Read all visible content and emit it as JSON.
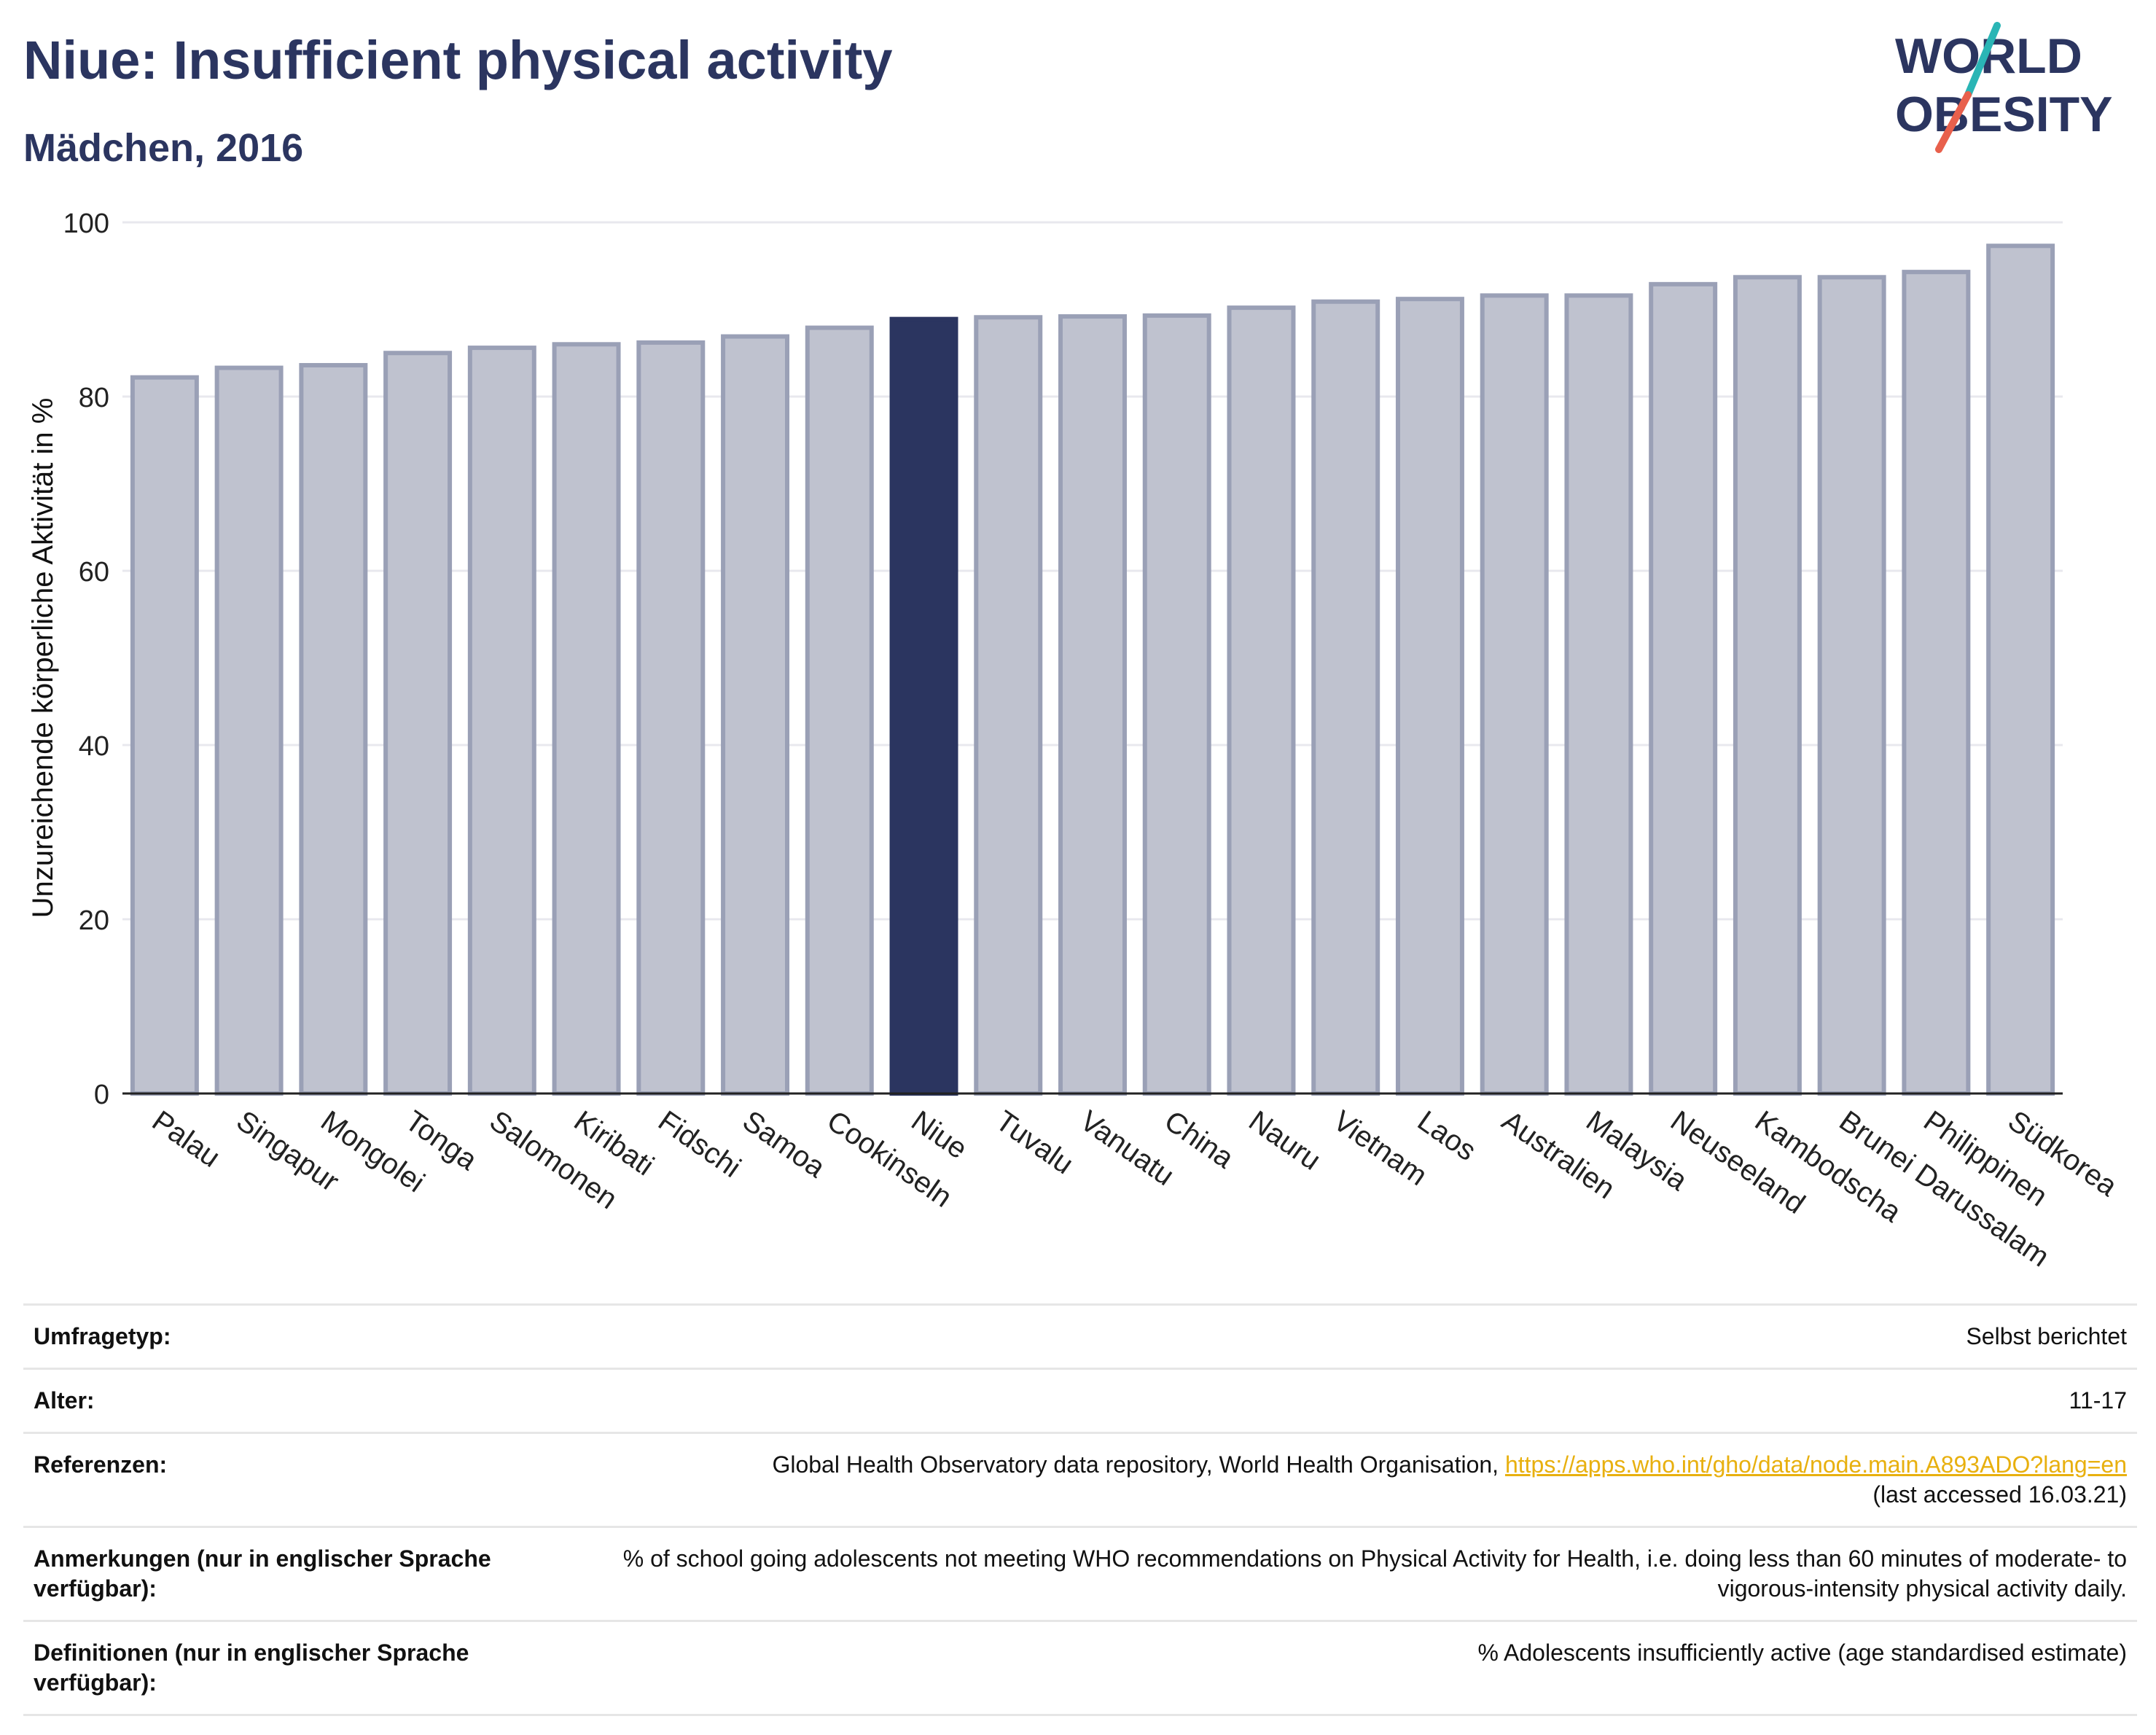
{
  "header": {
    "title": "Niue: Insufficient physical activity",
    "subtitle": "Mädchen, 2016"
  },
  "logo": {
    "text_line1": "WORLD",
    "text_line2": "OBESITY",
    "colors": {
      "text": "#2b3560",
      "slash_top": "#2ab5b5",
      "slash_bottom": "#e8604c"
    }
  },
  "chart_data": {
    "type": "bar",
    "title": "Niue: Insufficient physical activity",
    "subtitle": "Mädchen, 2016",
    "xlabel": "",
    "ylabel": "Unzureichende körperliche Aktivität in %",
    "ylim": [
      0,
      100
    ],
    "yticks": [
      0,
      20,
      40,
      60,
      80,
      100
    ],
    "grid": true,
    "categories": [
      "Palau",
      "Singapur",
      "Mongolei",
      "Tonga",
      "Salomonen",
      "Kiribati",
      "Fidschi",
      "Samoa",
      "Cookinseln",
      "Niue",
      "Tuvalu",
      "Vanuatu",
      "China",
      "Nauru",
      "Vietnam",
      "Laos",
      "Australien",
      "Malaysia",
      "Neuseeland",
      "Kambodscha",
      "Brunei Darussalam",
      "Philippinen",
      "Südkorea"
    ],
    "values": [
      82.2,
      83.3,
      83.6,
      85.0,
      85.6,
      86.0,
      86.2,
      86.9,
      87.9,
      88.9,
      89.1,
      89.2,
      89.3,
      90.2,
      90.9,
      91.2,
      91.6,
      91.6,
      92.9,
      93.7,
      93.7,
      94.3,
      97.3
    ],
    "highlight": "Niue",
    "colors": {
      "default_fill": "#bfc2cf",
      "default_stroke": "#9aa0b6",
      "highlight": "#2b3560"
    }
  },
  "meta": [
    {
      "label": "Umfragetyp:",
      "value": "Selbst berichtet"
    },
    {
      "label": "Alter:",
      "value": "11-17"
    },
    {
      "label": "Referenzen:",
      "value": "Global Health Observatory data repository, World Health Organisation, ",
      "link": "https://apps.who.int/gho/data/node.main.A893ADO?lang=en",
      "after": "(last accessed 16.03.21)"
    },
    {
      "label": "Anmerkungen (nur in englischer Sprache verfügbar):",
      "value": "% of school going adolescents not meeting WHO recommendations on Physical Activity for Health, i.e. doing less than 60 minutes of moderate- to vigorous-intensity physical activity daily."
    },
    {
      "label": "Definitionen (nur in englischer Sprache verfügbar):",
      "value": "% Adolescents insufficiently active (age standardised estimate)"
    }
  ]
}
